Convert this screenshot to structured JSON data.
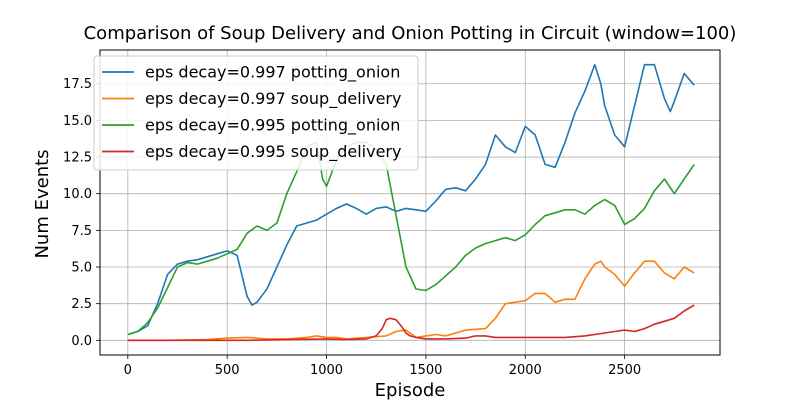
{
  "chart_data": {
    "type": "line",
    "title": "Comparison of Soup Delivery and Onion Potting in Circuit (window=100)",
    "xlabel": "Episode",
    "ylabel": "Num Events",
    "xlim": [
      -140,
      2980
    ],
    "ylim": [
      -1.0,
      19.8
    ],
    "xticks": [
      0,
      500,
      1000,
      1500,
      2000,
      2500
    ],
    "yticks": [
      0.0,
      2.5,
      5.0,
      7.5,
      10.0,
      12.5,
      15.0,
      17.5
    ],
    "xtick_labels": [
      "0",
      "500",
      "1000",
      "1500",
      "2000",
      "2500"
    ],
    "ytick_labels": [
      "0.0",
      "2.5",
      "5.0",
      "7.5",
      "10.0",
      "12.5",
      "15.0",
      "17.5"
    ],
    "grid": true,
    "legend_position": "top-left",
    "series": [
      {
        "name": "eps decay=0.997 potting_onion",
        "color": "#1f77b4",
        "x": [
          0,
          50,
          100,
          150,
          200,
          250,
          300,
          350,
          400,
          450,
          500,
          550,
          600,
          625,
          650,
          700,
          750,
          800,
          850,
          900,
          950,
          1000,
          1050,
          1100,
          1150,
          1200,
          1250,
          1300,
          1350,
          1400,
          1450,
          1500,
          1550,
          1600,
          1650,
          1700,
          1750,
          1800,
          1850,
          1900,
          1950,
          2000,
          2050,
          2100,
          2150,
          2200,
          2250,
          2300,
          2350,
          2380,
          2400,
          2450,
          2500,
          2550,
          2600,
          2650,
          2700,
          2730,
          2750,
          2800,
          2850
        ],
        "y": [
          0.4,
          0.6,
          1.0,
          2.5,
          4.5,
          5.2,
          5.4,
          5.5,
          5.7,
          5.9,
          6.1,
          5.8,
          3.0,
          2.4,
          2.6,
          3.5,
          5.0,
          6.5,
          7.8,
          8.0,
          8.2,
          8.6,
          9.0,
          9.3,
          9.0,
          8.6,
          9.0,
          9.1,
          8.8,
          9.0,
          8.9,
          8.8,
          9.5,
          10.3,
          10.4,
          10.2,
          11.0,
          12.0,
          14.0,
          13.2,
          12.8,
          14.6,
          14.0,
          12.0,
          11.8,
          13.5,
          15.5,
          17.0,
          18.8,
          17.5,
          16.0,
          14.0,
          13.2,
          16.0,
          18.8,
          18.8,
          16.5,
          15.6,
          16.3,
          18.2,
          17.4
        ]
      },
      {
        "name": "eps decay=0.997 soup_delivery",
        "color": "#ff7f0e",
        "x": [
          0,
          200,
          400,
          500,
          600,
          700,
          800,
          900,
          950,
          1000,
          1050,
          1100,
          1200,
          1300,
          1350,
          1400,
          1450,
          1500,
          1550,
          1600,
          1700,
          1800,
          1850,
          1900,
          1950,
          2000,
          2050,
          2100,
          2150,
          2200,
          2250,
          2300,
          2350,
          2380,
          2400,
          2450,
          2500,
          2550,
          2600,
          2650,
          2700,
          2750,
          2800,
          2850
        ],
        "y": [
          0.0,
          0.0,
          0.05,
          0.15,
          0.2,
          0.1,
          0.1,
          0.2,
          0.3,
          0.2,
          0.2,
          0.1,
          0.2,
          0.3,
          0.6,
          0.7,
          0.2,
          0.3,
          0.4,
          0.3,
          0.7,
          0.8,
          1.5,
          2.5,
          2.6,
          2.7,
          3.2,
          3.2,
          2.6,
          2.8,
          2.8,
          4.2,
          5.2,
          5.4,
          5.0,
          4.5,
          3.7,
          4.6,
          5.4,
          5.4,
          4.6,
          4.2,
          5.0,
          4.6
        ]
      },
      {
        "name": "eps decay=0.995 potting_onion",
        "color": "#2ca02c",
        "x": [
          0,
          50,
          100,
          150,
          200,
          250,
          300,
          350,
          400,
          450,
          500,
          550,
          600,
          650,
          700,
          750,
          800,
          850,
          900,
          950,
          980,
          1000,
          1050,
          1100,
          1150,
          1200,
          1250,
          1300,
          1350,
          1400,
          1450,
          1500,
          1550,
          1600,
          1650,
          1700,
          1750,
          1800,
          1850,
          1900,
          1950,
          2000,
          2050,
          2100,
          2150,
          2200,
          2250,
          2300,
          2350,
          2400,
          2450,
          2500,
          2550,
          2600,
          2650,
          2700,
          2750,
          2800,
          2850
        ],
        "y": [
          0.4,
          0.6,
          1.2,
          2.2,
          3.6,
          5.0,
          5.3,
          5.2,
          5.4,
          5.6,
          5.9,
          6.2,
          7.3,
          7.8,
          7.5,
          8.0,
          10.0,
          11.5,
          13.2,
          13.5,
          11.0,
          10.5,
          12.3,
          13.2,
          13.5,
          13.5,
          13.0,
          12.0,
          8.5,
          5.0,
          3.5,
          3.4,
          3.8,
          4.4,
          5.0,
          5.8,
          6.3,
          6.6,
          6.8,
          7.0,
          6.8,
          7.2,
          7.9,
          8.5,
          8.7,
          8.9,
          8.9,
          8.6,
          9.2,
          9.6,
          9.2,
          7.9,
          8.3,
          9.0,
          10.2,
          11.0,
          10.0,
          11.0,
          12.0
        ]
      },
      {
        "name": "eps decay=0.995 soup_delivery",
        "color": "#d62728",
        "x": [
          0,
          200,
          400,
          600,
          800,
          1000,
          1100,
          1200,
          1250,
          1280,
          1300,
          1320,
          1350,
          1380,
          1400,
          1420,
          1450,
          1500,
          1600,
          1700,
          1750,
          1800,
          1850,
          1900,
          2000,
          2100,
          2200,
          2300,
          2400,
          2450,
          2500,
          2550,
          2600,
          2650,
          2700,
          2750,
          2800,
          2850
        ],
        "y": [
          0.0,
          0.0,
          0.0,
          0.0,
          0.05,
          0.1,
          0.05,
          0.1,
          0.3,
          0.8,
          1.4,
          1.5,
          1.4,
          0.9,
          0.5,
          0.3,
          0.2,
          0.1,
          0.1,
          0.15,
          0.3,
          0.3,
          0.2,
          0.2,
          0.2,
          0.2,
          0.2,
          0.3,
          0.5,
          0.6,
          0.7,
          0.6,
          0.8,
          1.1,
          1.3,
          1.5,
          2.0,
          2.4
        ]
      }
    ]
  }
}
